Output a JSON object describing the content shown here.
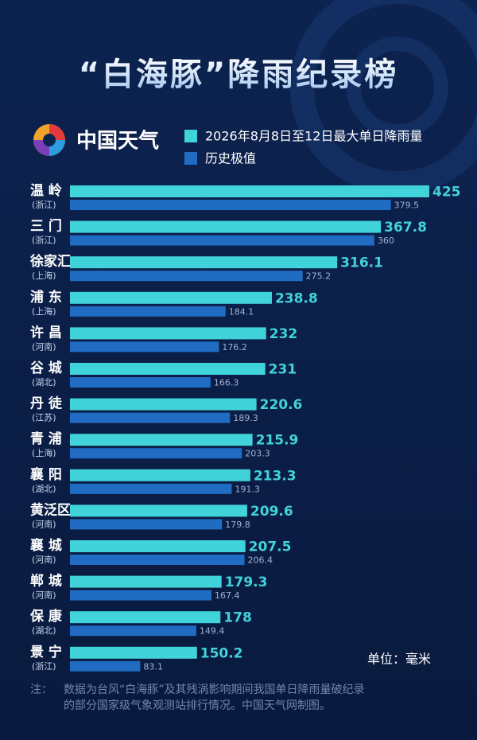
{
  "chart_data": {
    "type": "bar",
    "orientation": "horizontal",
    "title": "“白海豚”降雨纪录榜",
    "brand": "中国天气",
    "categories": [
      "温 岭",
      "三 门",
      "徐家汇",
      "浦 东",
      "许 昌",
      "谷 城",
      "丹 徒",
      "青 浦",
      "襄 阳",
      "黄泛区",
      "襄 城",
      "郸 城",
      "保 康",
      "景 宁"
    ],
    "regions": [
      "(浙江)",
      "(浙江)",
      "(上海)",
      "(上海)",
      "(河南)",
      "(湖北)",
      "(江苏)",
      "(上海)",
      "(湖北)",
      "(河南)",
      "(河南)",
      "(河南)",
      "(湖北)",
      "(浙江)"
    ],
    "series": [
      {
        "name": "2026年8月8日至12日最大单日降雨量",
        "color": "#41d3da",
        "values": [
          425,
          367.8,
          316.1,
          238.8,
          232,
          231,
          220.6,
          215.9,
          213.3,
          209.6,
          207.5,
          179.3,
          178,
          150.2
        ]
      },
      {
        "name": "历史极值",
        "color": "#1f6cc2",
        "values": [
          379.5,
          360,
          275.2,
          184.1,
          176.2,
          166.3,
          189.3,
          203.3,
          191.3,
          179.8,
          206.4,
          167.4,
          149.4,
          83.1
        ]
      }
    ],
    "unit": "单位：毫米",
    "note_label": "注：",
    "note": [
      "数据为台风“白海豚”及其残涡影响期间我国单日降雨量破纪录",
      "的部分国家级气象观测站排行情况。中国天气网制图。"
    ]
  }
}
